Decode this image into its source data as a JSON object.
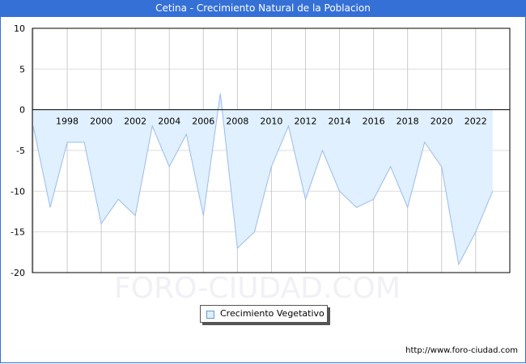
{
  "header": {
    "title": "Cetina - Crecimiento Natural de la Poblacion"
  },
  "footer": {
    "url": "http://www.foro-ciudad.com"
  },
  "watermark": "FORO-CIUDAD.COM",
  "legend": {
    "label": "Crecimiento Vegetativo",
    "fill": "#ddeeff",
    "stroke": "#99bbee"
  },
  "chart_data": {
    "type": "area",
    "title": "Cetina - Crecimiento Natural de la Poblacion",
    "xlabel": "",
    "ylabel": "",
    "ylim": [
      -20,
      10
    ],
    "yticks": [
      10,
      5,
      0,
      -5,
      -10,
      -15,
      -20
    ],
    "xtick_labels": [
      "1998",
      "2000",
      "2002",
      "2004",
      "2006",
      "2008",
      "2010",
      "2012",
      "2014",
      "2016",
      "2018",
      "2020",
      "2022"
    ],
    "grid": true,
    "legend_position": "bottom",
    "x": [
      1996,
      1997,
      1998,
      1999,
      2000,
      2001,
      2002,
      2003,
      2004,
      2005,
      2006,
      2007,
      2008,
      2009,
      2010,
      2011,
      2012,
      2013,
      2014,
      2015,
      2016,
      2017,
      2018,
      2019,
      2020,
      2021,
      2022,
      2023
    ],
    "series": [
      {
        "name": "Crecimiento Vegetativo",
        "values": [
          -2,
          -12,
          -4,
          -4,
          -14,
          -11,
          -13,
          -2,
          -7,
          -3,
          -13,
          2,
          -17,
          -15,
          -7,
          -2,
          -11,
          -5,
          -10,
          -12,
          -11,
          -7,
          -12,
          -4,
          -7,
          -19,
          -15,
          -10
        ]
      }
    ]
  }
}
